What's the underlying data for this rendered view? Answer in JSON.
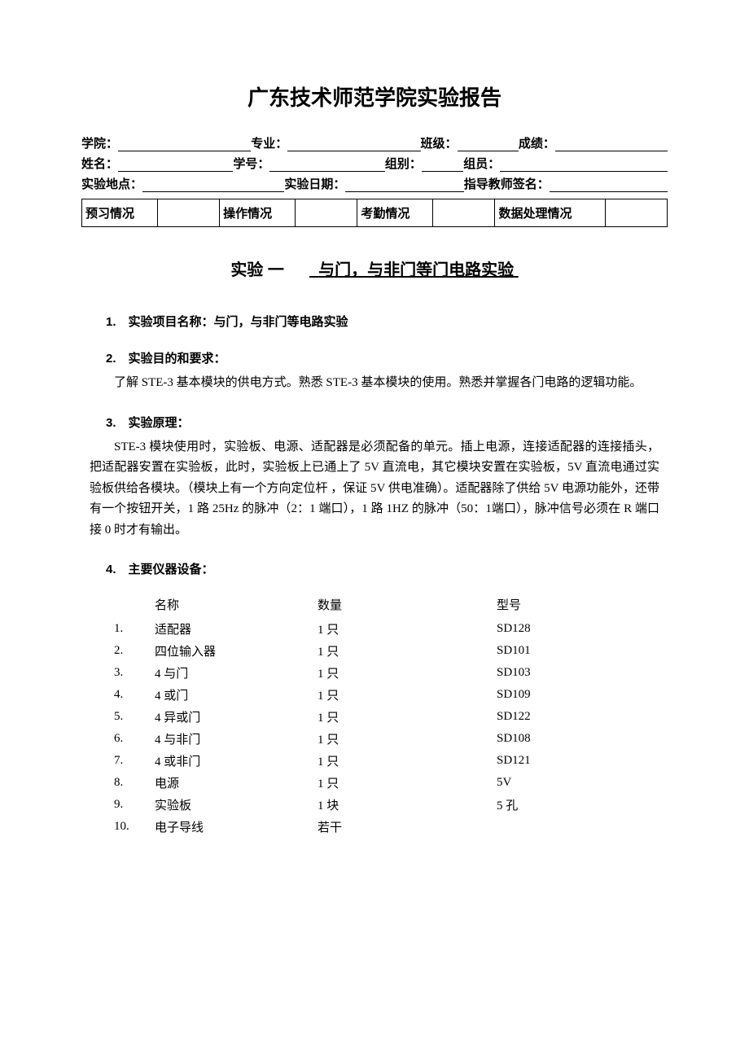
{
  "page_title": "广东技术师范学院实验报告",
  "info": {
    "row1": [
      "学院：",
      "专业：",
      "班级：",
      "成绩："
    ],
    "row2": [
      "姓名：",
      "学号：",
      "组别：",
      "组员："
    ],
    "row3": [
      "实验地点：",
      "实验日期：",
      "指导教师签名："
    ]
  },
  "status_labels": [
    "预习情况",
    "操作情况",
    "考勤情况",
    "数据处理情况"
  ],
  "subtitle_prefix": "实验 一",
  "subtitle_name": "与门，与非门等门电路实验",
  "sections": {
    "s1_head": "1.　实验项目名称：与门，与非门等电路实验",
    "s2_head": "2.　实验目的和要求：",
    "s2_body": "了解 STE-3 基本模块的供电方式。熟悉 STE-3 基本模块的使用。熟悉并掌握各门电路的逻辑功能。",
    "s3_head": "3.　实验原理：",
    "s3_body": "STE-3 模块使用时，实验板、电源、适配器是必须配备的单元。插上电源，连接适配器的连接插头，把适配器安置在实验板，此时，实验板上已通上了 5V 直流电，其它模块安置在实验板，5V 直流电通过实验板供给各模块。（模块上有一个方向定位杆 ，保证 5V 供电准确）。适配器除了供给 5V 电源功能外，还带有一个按钮开关，1 路 25Hz 的脉冲（2：1 端口），1 路 1HZ 的脉冲（50：1端口），脉冲信号必须在 R 端口接 0 时才有输出。",
    "s4_head": "4.　主要仪器设备："
  },
  "equip_headers": {
    "idx": "",
    "name": "名称",
    "qty": "数量",
    "model": "型号"
  },
  "equipment": [
    {
      "idx": "1.",
      "name": "适配器",
      "qty": "1 只",
      "model": "SD128"
    },
    {
      "idx": "2.",
      "name": "四位输入器",
      "qty": "1 只",
      "model": "SD101"
    },
    {
      "idx": "3.",
      "name": "4 与门",
      "qty": "1 只",
      "model": "SD103"
    },
    {
      "idx": "4.",
      "name": "4 或门",
      "qty": "1 只",
      "model": "SD109"
    },
    {
      "idx": "5.",
      "name": "4 异或门",
      "qty": "1 只",
      "model": "SD122"
    },
    {
      "idx": "6.",
      "name": "4 与非门",
      "qty": "1 只",
      "model": "SD108"
    },
    {
      "idx": "7.",
      "name": "4 或非门",
      "qty": "1 只",
      "model": "SD121"
    },
    {
      "idx": "8.",
      "name": "电源",
      "qty": "1 只",
      "model": "5V"
    },
    {
      "idx": "9.",
      "name": "实验板",
      "qty": "1 块",
      "model": "5 孔"
    },
    {
      "idx": "10.",
      "name": "电子导线",
      "qty": "若干",
      "model": ""
    }
  ]
}
